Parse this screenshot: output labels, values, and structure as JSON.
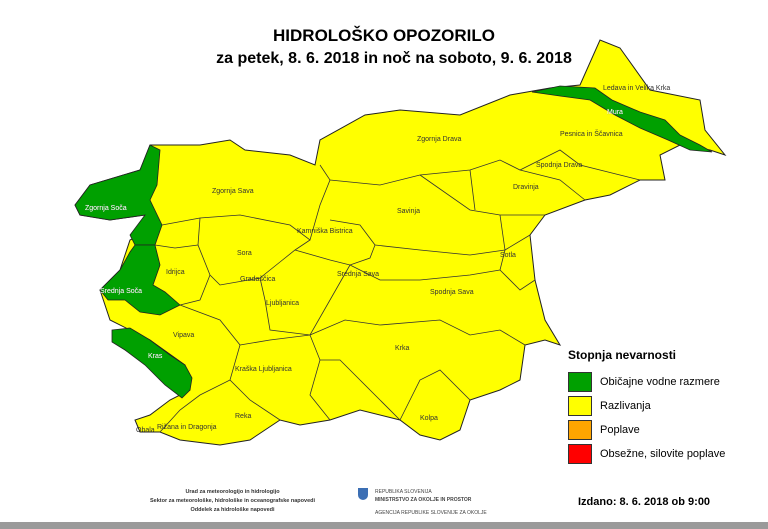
{
  "header": {
    "title": "HIDROLOŠKO OPOZORILO",
    "subtitle": "za petek, 8. 6. 2018  in noč na soboto, 9. 6. 2018"
  },
  "colors": {
    "green": "#00a000",
    "yellow": "#ffff00",
    "orange": "#ffa500",
    "red": "#ff0000"
  },
  "regions": [
    {
      "name": "Zgornja Soča",
      "level": "green"
    },
    {
      "name": "Srednja Soča",
      "level": "green"
    },
    {
      "name": "Kras",
      "level": "green"
    },
    {
      "name": "Mura",
      "level": "green"
    },
    {
      "name": "Ledava in Velika Krka",
      "level": "yellow"
    },
    {
      "name": "Pesnica in Ščavnica",
      "level": "yellow"
    },
    {
      "name": "Zgornja Drava",
      "level": "yellow"
    },
    {
      "name": "Spodnja Drava",
      "level": "yellow"
    },
    {
      "name": "Dravinja",
      "level": "yellow"
    },
    {
      "name": "Zgornja Sava",
      "level": "yellow"
    },
    {
      "name": "Savinja",
      "level": "yellow"
    },
    {
      "name": "Kamniška Bistrica",
      "level": "yellow"
    },
    {
      "name": "Sotla",
      "level": "yellow"
    },
    {
      "name": "Idrijca",
      "level": "yellow"
    },
    {
      "name": "Sora",
      "level": "yellow"
    },
    {
      "name": "Gradaščica",
      "level": "yellow"
    },
    {
      "name": "Srednja Sava",
      "level": "yellow"
    },
    {
      "name": "Ljubljanica",
      "level": "yellow"
    },
    {
      "name": "Spodnja Sava",
      "level": "yellow"
    },
    {
      "name": "Vipava",
      "level": "yellow"
    },
    {
      "name": "Krka",
      "level": "yellow"
    },
    {
      "name": "Kraška Ljubljanica",
      "level": "yellow"
    },
    {
      "name": "Reka",
      "level": "yellow"
    },
    {
      "name": "Rižana in Dragonja",
      "level": "yellow"
    },
    {
      "name": "Obala",
      "level": "yellow"
    },
    {
      "name": "Kolpa",
      "level": "yellow"
    }
  ],
  "legend": {
    "title": "Stopnja nevarnosti",
    "items": [
      {
        "label": "Običajne vodne razmere",
        "color": "#00a000"
      },
      {
        "label": "Razlivanja",
        "color": "#ffff00"
      },
      {
        "label": "Poplave",
        "color": "#ffa500"
      },
      {
        "label": "Obsežne, silovite poplave",
        "color": "#ff0000"
      }
    ]
  },
  "footer": {
    "office_lines": [
      "Urad za meteorologijo in hidrologijo",
      "Sektor za meteorološke, hidrološke in oceanografske napovedi",
      "Oddelek za hidrološke napovedi"
    ],
    "gov_lines": [
      "REPUBLIKA SLOVENIJA",
      "MINISTRSTVO ZA OKOLJE IN PROSTOR",
      "AGENCIJA REPUBLIKE SLOVENIJE ZA OKOLJE"
    ],
    "issued": "Izdano: 8. 6. 2018 ob 9:00"
  }
}
